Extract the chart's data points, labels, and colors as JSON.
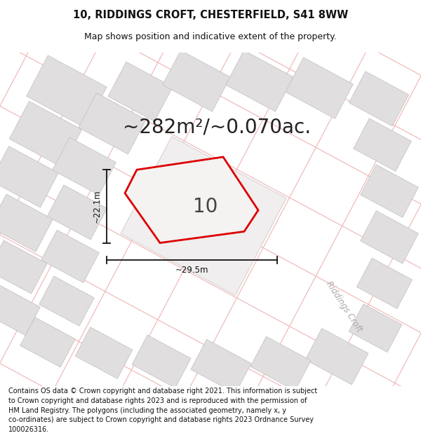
{
  "title_line1": "10, RIDDINGS CROFT, CHESTERFIELD, S41 8WW",
  "title_line2": "Map shows position and indicative extent of the property.",
  "area_text": "~282m²/~0.070ac.",
  "width_label": "~29.5m",
  "height_label": "~22.1m",
  "plot_number": "10",
  "street_name": "Riddings Croft",
  "footer_line1": "Contains OS data © Crown copyright and database right 2021. This information is subject",
  "footer_line2": "to Crown copyright and database rights 2023 and is reproduced with the permission of",
  "footer_line3": "HM Land Registry. The polygons (including the associated geometry, namely x, y",
  "footer_line4": "co-ordinates) are subject to Crown copyright and database rights 2023 Ordnance Survey",
  "footer_line5": "100026316.",
  "map_bg": "#f8f7f7",
  "building_fill": "#e0dede",
  "building_edge": "#c8c4c4",
  "plot_edge": "#d0c8c8",
  "road_color": "#f0b8b8",
  "red_line_color": "#dd0000",
  "dim_color": "#111111",
  "street_color": "#b0a8a8",
  "title_fontsize": 10.5,
  "subtitle_fontsize": 9,
  "area_fontsize": 20,
  "label_fontsize": 8.5,
  "plot_num_fontsize": 20,
  "street_fontsize": 8.5,
  "footer_fontsize": 7.0
}
